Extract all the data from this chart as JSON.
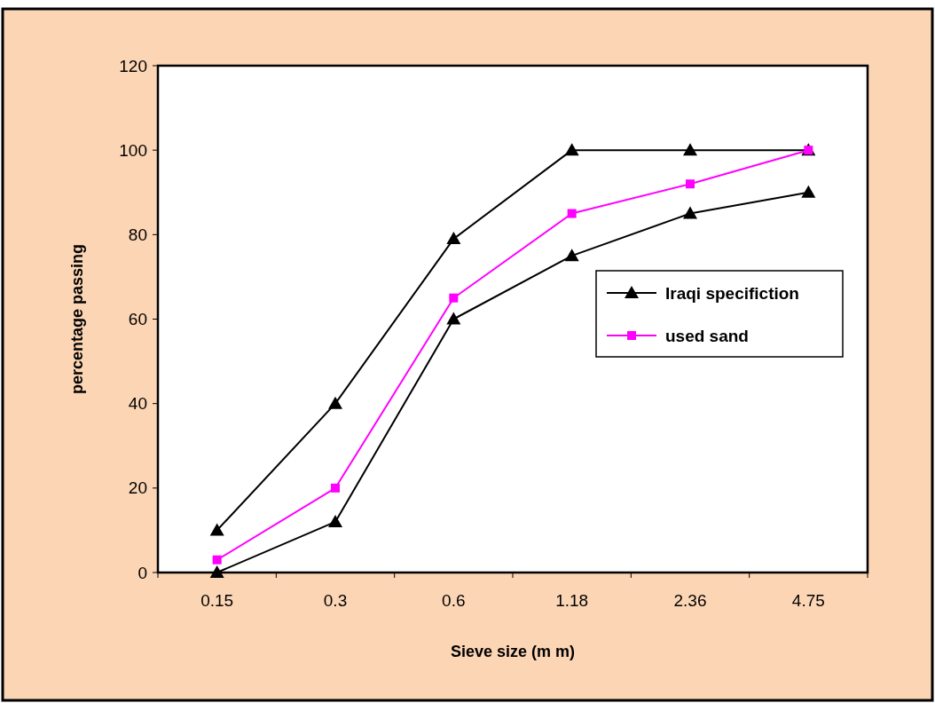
{
  "chart_data": {
    "type": "line",
    "xlabel": "Sieve size (m m)",
    "ylabel": "percentage passing",
    "categories": [
      "0.15",
      "0.3",
      "0.6",
      "1.18",
      "2.36",
      "4.75"
    ],
    "series": [
      {
        "name": "Iraqi specifiction",
        "color": "#000000",
        "marker": "triangle",
        "values": [
          10,
          40,
          79,
          100,
          100,
          100
        ]
      },
      {
        "color": "#000000",
        "marker": "triangle",
        "values": [
          0,
          12,
          60,
          75,
          85,
          90
        ]
      },
      {
        "name": "used sand",
        "color": "#ff00ff",
        "marker": "square",
        "values": [
          3,
          20,
          65,
          85,
          92,
          100
        ]
      }
    ],
    "ylim": [
      0,
      120
    ],
    "yticks": [
      0,
      20,
      40,
      60,
      80,
      100,
      120
    ],
    "grid": false,
    "legend": "right"
  }
}
